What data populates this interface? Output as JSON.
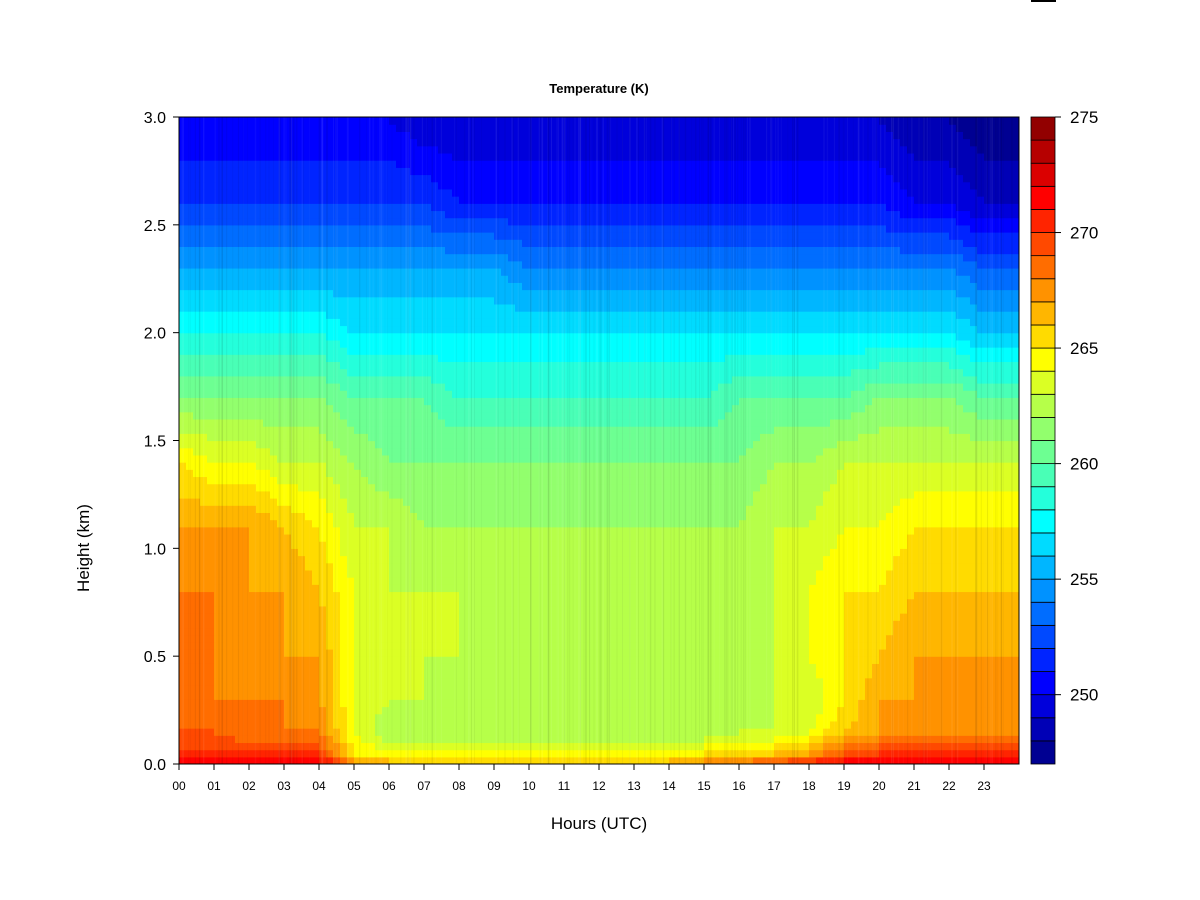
{
  "chart_data": {
    "type": "heatmap",
    "title": "Temperature (K)",
    "xlabel": "Hours (UTC)",
    "ylabel": "Height (km)",
    "xlim": [
      0,
      24
    ],
    "ylim": [
      0,
      3.0
    ],
    "x_ticks": [
      0,
      1,
      2,
      3,
      4,
      5,
      6,
      7,
      8,
      9,
      10,
      11,
      12,
      13,
      14,
      15,
      16,
      17,
      18,
      19,
      20,
      21,
      22,
      23
    ],
    "x_tick_labels": [
      "00",
      "01",
      "02",
      "03",
      "04",
      "05",
      "06",
      "07",
      "08",
      "09",
      "10",
      "11",
      "12",
      "13",
      "14",
      "15",
      "16",
      "17",
      "18",
      "19",
      "20",
      "21",
      "22",
      "23"
    ],
    "y_ticks": [
      0.0,
      0.5,
      1.0,
      1.5,
      2.0,
      2.5,
      3.0
    ],
    "y_tick_labels": [
      "0.0",
      "0.5",
      "1.0",
      "1.5",
      "2.0",
      "2.5",
      "3.0"
    ],
    "colorbar": {
      "min": 247,
      "max": 275,
      "step": 1,
      "ticks": [
        250,
        255,
        260,
        265,
        270,
        275
      ],
      "tick_labels": [
        "250",
        "255",
        "260",
        "265",
        "270",
        "275"
      ]
    },
    "hours": [
      0,
      1,
      2,
      3,
      4,
      5,
      6,
      7,
      8,
      9,
      10,
      11,
      12,
      13,
      14,
      15,
      16,
      17,
      18,
      19,
      20,
      21,
      22,
      23,
      24
    ],
    "heights_km": [
      0.0,
      0.05,
      0.15,
      0.3,
      0.5,
      0.8,
      1.1,
      1.4,
      1.7,
      2.0,
      2.3,
      2.6,
      3.0
    ],
    "temperature_K": [
      [
        272,
        272,
        272,
        272,
        272,
        268,
        267,
        266,
        266,
        266,
        266,
        266,
        266,
        266,
        267,
        268,
        269,
        270,
        271,
        272,
        272,
        272,
        272,
        272,
        272
      ],
      [
        270,
        270,
        270,
        270,
        270,
        265,
        264,
        264,
        264,
        264,
        264,
        264,
        264,
        264,
        264,
        265,
        265,
        266,
        267,
        269,
        270,
        270,
        270,
        270,
        270
      ],
      [
        269,
        269,
        268,
        268,
        268,
        264,
        262,
        262,
        262,
        262,
        262,
        262,
        262,
        262,
        262,
        262,
        263,
        263,
        264,
        266,
        267,
        267,
        267,
        267,
        267
      ],
      [
        269,
        268,
        268,
        268,
        267,
        264,
        263,
        263,
        262,
        262,
        262,
        262,
        262,
        262,
        262,
        262,
        262,
        263,
        263,
        265,
        267,
        267,
        267,
        267,
        267
      ],
      [
        268,
        268,
        267,
        267,
        267,
        264,
        263,
        263,
        263,
        262,
        262,
        262,
        262,
        262,
        262,
        262,
        262,
        263,
        264,
        265,
        266,
        267,
        267,
        267,
        267
      ],
      [
        268,
        268,
        267,
        267,
        266,
        264,
        263,
        263,
        263,
        263,
        262,
        262,
        262,
        262,
        262,
        263,
        263,
        263,
        264,
        265,
        265,
        266,
        266,
        266,
        266
      ],
      [
        267,
        267,
        267,
        266,
        265,
        263,
        263,
        262,
        262,
        262,
        262,
        262,
        262,
        262,
        262,
        262,
        262,
        263,
        263,
        264,
        264,
        265,
        265,
        265,
        265
      ],
      [
        265,
        264,
        264,
        263,
        263,
        262,
        261,
        261,
        261,
        261,
        261,
        261,
        261,
        261,
        261,
        261,
        261,
        262,
        262,
        263,
        263,
        263,
        263,
        263,
        263
      ],
      [
        261,
        261,
        261,
        261,
        261,
        260,
        260,
        260,
        259,
        259,
        259,
        259,
        259,
        259,
        259,
        259,
        260,
        260,
        260,
        260,
        261,
        261,
        261,
        260,
        260
      ],
      [
        258,
        258,
        258,
        258,
        258,
        257,
        257,
        257,
        257,
        257,
        257,
        257,
        257,
        257,
        257,
        257,
        257,
        257,
        257,
        257,
        257,
        257,
        257,
        256,
        256
      ],
      [
        255,
        255,
        255,
        255,
        255,
        255,
        255,
        255,
        255,
        255,
        254,
        254,
        254,
        254,
        254,
        254,
        254,
        254,
        254,
        254,
        254,
        254,
        254,
        253,
        253
      ],
      [
        252,
        252,
        252,
        252,
        252,
        252,
        252,
        252,
        251,
        251,
        251,
        251,
        251,
        251,
        251,
        251,
        251,
        251,
        251,
        251,
        251,
        250,
        250,
        249,
        249
      ],
      [
        250,
        250,
        250,
        250,
        250,
        250,
        250,
        249,
        249,
        249,
        249,
        249,
        249,
        249,
        249,
        249,
        249,
        249,
        249,
        249,
        249,
        248,
        248,
        247,
        247
      ]
    ]
  }
}
